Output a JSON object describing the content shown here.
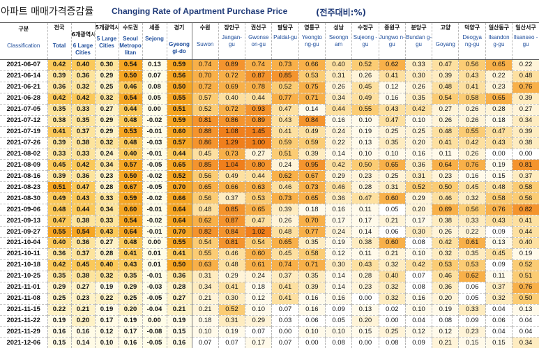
{
  "title": {
    "korean": "아파트 매매가격증감률",
    "english": "Changing Rate of Apartment Purchase Price",
    "unit": "(전주대비:%)"
  },
  "header": {
    "date_col": {
      "ko": "구분",
      "en": "Classification"
    },
    "columns": [
      {
        "ko": "전국",
        "en": "Total"
      },
      {
        "ko": "6개광역시",
        "en": "6 Large Cities"
      },
      {
        "ko": "5개광역시",
        "en": "5 Large Cities"
      },
      {
        "ko": "수도권",
        "en": "Seoul Metropo litan"
      },
      {
        "ko": "세종",
        "en": "Sejong"
      },
      {
        "ko": "경기",
        "en": "Gyeong gi-do"
      },
      {
        "ko": "수원",
        "en": "Suwon"
      },
      {
        "ko": "장안구",
        "en": "Jangan-gu"
      },
      {
        "ko": "권선구",
        "en": "Gwonse on-gu"
      },
      {
        "ko": "팔달구",
        "en": "Paldal-gu"
      },
      {
        "ko": "영통구",
        "en": "Yeongto ng-gu"
      },
      {
        "ko": "성남",
        "en": "Seongn am"
      },
      {
        "ko": "수정구",
        "en": "Sujeong -gu"
      },
      {
        "ko": "중원구",
        "en": "Jungwo n-gu"
      },
      {
        "ko": "분당구",
        "en": "Bundan g-gu"
      },
      {
        "ko": "고양",
        "en": "Goyang"
      },
      {
        "ko": "덕양구",
        "en": "Deogya ng-gu"
      },
      {
        "ko": "일산동구",
        "en": "Ilsandon g-gu"
      },
      {
        "ko": "일산서구",
        "en": "Ilsanseo -gu"
      }
    ]
  },
  "chart_data": {
    "type": "table",
    "title": "Changing Rate of Apartment Purchase Price",
    "unit": "(전주대비:%)",
    "columns": [
      "Total",
      "6 Large Cities",
      "5 Large Cities",
      "Seoul Metropo litan",
      "Sejong",
      "Gyeong gi-do",
      "Suwon",
      "Jangan-gu",
      "Gwonse on-gu",
      "Paldal-gu",
      "Yeongto ng-gu",
      "Seongn am",
      "Sujeong -gu",
      "Jungwo n-gu",
      "Bundan g-gu",
      "Goyang",
      "Deogya ng-gu",
      "Ilsandon g-gu",
      "Ilsanseo -gu"
    ],
    "rows": [
      {
        "date": "2021-06-07",
        "values": [
          "0.42",
          "0.40",
          "0.30",
          "0.54",
          "0.13",
          "0.59",
          "0.74",
          "0.89",
          "0.74",
          "0.73",
          "0.66",
          "0.40",
          "0.52",
          "0.62",
          "0.33",
          "0.47",
          "0.56",
          "0.65",
          "0.22"
        ]
      },
      {
        "date": "2021-06-14",
        "values": [
          "0.39",
          "0.36",
          "0.29",
          "0.50",
          "0.07",
          "0.56",
          "0.70",
          "0.72",
          "0.87",
          "0.85",
          "0.53",
          "0.31",
          "0.26",
          "0.41",
          "0.30",
          "0.39",
          "0.43",
          "0.22",
          "0.48"
        ]
      },
      {
        "date": "2021-06-21",
        "values": [
          "0.36",
          "0.32",
          "0.25",
          "0.46",
          "0.08",
          "0.50",
          "0.72",
          "0.69",
          "0.78",
          "0.52",
          "0.75",
          "0.26",
          "0.45",
          "0.12",
          "0.26",
          "0.48",
          "0.41",
          "0.23",
          "0.76"
        ]
      },
      {
        "date": "2021-06-28",
        "values": [
          "0.42",
          "0.42",
          "0.32",
          "0.54",
          "0.05",
          "0.55",
          "0.57",
          "0.40",
          "0.44",
          "0.77",
          "0.71",
          "0.34",
          "0.49",
          "0.16",
          "0.35",
          "0.54",
          "0.58",
          "0.65",
          "0.39"
        ]
      },
      {
        "date": "2021-07-05",
        "values": [
          "0.35",
          "0.33",
          "0.27",
          "0.44",
          "0.00",
          "0.51",
          "0.52",
          "0.72",
          "0.93",
          "0.47",
          "0.14",
          "0.44",
          "0.55",
          "0.43",
          "0.42",
          "0.27",
          "0.26",
          "0.28",
          "0.27"
        ]
      },
      {
        "date": "2021-07-12",
        "values": [
          "0.38",
          "0.35",
          "0.29",
          "0.48",
          "-0.02",
          "0.59",
          "0.81",
          "0.86",
          "0.89",
          "0.43",
          "0.84",
          "0.16",
          "0.10",
          "0.47",
          "0.10",
          "0.26",
          "0.26",
          "0.18",
          "0.34"
        ]
      },
      {
        "date": "2021-07-19",
        "values": [
          "0.41",
          "0.37",
          "0.29",
          "0.53",
          "-0.01",
          "0.60",
          "0.88",
          "1.08",
          "1.45",
          "0.41",
          "0.49",
          "0.24",
          "0.19",
          "0.25",
          "0.25",
          "0.48",
          "0.55",
          "0.47",
          "0.39"
        ]
      },
      {
        "date": "2021-07-26",
        "values": [
          "0.39",
          "0.38",
          "0.32",
          "0.48",
          "-0.03",
          "0.57",
          "0.86",
          "1.29",
          "1.00",
          "0.59",
          "0.59",
          "0.22",
          "0.13",
          "0.35",
          "0.20",
          "0.41",
          "0.42",
          "0.43",
          "0.38"
        ]
      },
      {
        "date": "2021-08-02",
        "values": [
          "0.33",
          "0.33",
          "0.24",
          "0.40",
          "-0.01",
          "0.44",
          "0.45",
          "0.73",
          "0.27",
          "0.51",
          "0.39",
          "0.14",
          "0.10",
          "0.10",
          "0.16",
          "0.11",
          "0.26",
          "0.00",
          "0.00"
        ]
      },
      {
        "date": "2021-08-09",
        "values": [
          "0.45",
          "0.42",
          "0.34",
          "0.57",
          "-0.05",
          "0.65",
          "0.85",
          "1.04",
          "0.80",
          "0.24",
          "0.95",
          "0.42",
          "0.50",
          "0.65",
          "0.36",
          "0.64",
          "0.76",
          "0.19",
          "0.81"
        ]
      },
      {
        "date": "2021-08-16",
        "values": [
          "0.39",
          "0.36",
          "0.23",
          "0.50",
          "-0.02",
          "0.52",
          "0.56",
          "0.49",
          "0.44",
          "0.62",
          "0.67",
          "0.29",
          "0.23",
          "0.25",
          "0.31",
          "0.23",
          "0.16",
          "0.15",
          "0.37"
        ]
      },
      {
        "date": "2021-08-23",
        "values": [
          "0.51",
          "0.47",
          "0.28",
          "0.67",
          "-0.05",
          "0.70",
          "0.65",
          "0.66",
          "0.63",
          "0.46",
          "0.73",
          "0.46",
          "0.28",
          "0.31",
          "0.52",
          "0.50",
          "0.45",
          "0.48",
          "0.58"
        ]
      },
      {
        "date": "2021-08-30",
        "values": [
          "0.49",
          "0.43",
          "0.33",
          "0.59",
          "-0.02",
          "0.66",
          "0.56",
          "0.37",
          "0.53",
          "0.73",
          "0.65",
          "0.36",
          "0.47",
          "0.60",
          "0.29",
          "0.46",
          "0.32",
          "0.58",
          "0.56"
        ]
      },
      {
        "date": "2021-09-06",
        "values": [
          "0.48",
          "0.44",
          "0.34",
          "0.60",
          "-0.01",
          "0.64",
          "0.48",
          "0.85",
          "0.65",
          "0.39",
          "0.18",
          "0.16",
          "0.11",
          "0.05",
          "0.20",
          "0.69",
          "0.56",
          "0.76",
          "0.82"
        ]
      },
      {
        "date": "2021-09-13",
        "values": [
          "0.47",
          "0.38",
          "0.33",
          "0.54",
          "-0.02",
          "0.64",
          "0.62",
          "0.87",
          "0.47",
          "0.26",
          "0.70",
          "0.17",
          "0.17",
          "0.21",
          "0.17",
          "0.38",
          "0.33",
          "0.43",
          "0.41"
        ]
      },
      {
        "date": "2021-09-27",
        "values": [
          "0.55",
          "0.54",
          "0.43",
          "0.64",
          "-0.01",
          "0.70",
          "0.82",
          "0.84",
          "1.02",
          "0.48",
          "0.77",
          "0.24",
          "0.14",
          "0.06",
          "0.30",
          "0.26",
          "0.22",
          "0.09",
          "0.44"
        ]
      },
      {
        "date": "2021-10-04",
        "values": [
          "0.40",
          "0.36",
          "0.27",
          "0.48",
          "0.00",
          "0.55",
          "0.54",
          "0.81",
          "0.54",
          "0.65",
          "0.35",
          "0.19",
          "0.38",
          "0.60",
          "0.08",
          "0.42",
          "0.61",
          "0.13",
          "0.40"
        ]
      },
      {
        "date": "2021-10-11",
        "values": [
          "0.36",
          "0.37",
          "0.28",
          "0.41",
          "0.01",
          "0.41",
          "0.55",
          "0.46",
          "0.60",
          "0.45",
          "0.58",
          "0.12",
          "0.11",
          "0.21",
          "0.10",
          "0.32",
          "0.35",
          "0.45",
          "0.19"
        ]
      },
      {
        "date": "2021-10-18",
        "values": [
          "0.42",
          "0.45",
          "0.40",
          "0.43",
          "0.01",
          "0.50",
          "0.63",
          "0.48",
          "0.61",
          "0.74",
          "0.71",
          "0.30",
          "0.43",
          "0.32",
          "0.42",
          "0.53",
          "0.53",
          "0.09",
          "0.52"
        ]
      },
      {
        "date": "2021-10-25",
        "values": [
          "0.35",
          "0.38",
          "0.32",
          "0.35",
          "-0.01",
          "0.36",
          "0.31",
          "0.29",
          "0.24",
          "0.37",
          "0.35",
          "0.14",
          "0.28",
          "0.40",
          "0.07",
          "0.46",
          "0.62",
          "0.11",
          "0.51"
        ]
      },
      {
        "date": "2021-11-01",
        "values": [
          "0.29",
          "0.27",
          "0.19",
          "0.29",
          "-0.03",
          "0.28",
          "0.34",
          "0.41",
          "0.18",
          "0.41",
          "0.39",
          "0.14",
          "0.23",
          "0.32",
          "0.08",
          "0.36",
          "0.06",
          "0.37",
          "0.76"
        ]
      },
      {
        "date": "2021-11-08",
        "values": [
          "0.25",
          "0.23",
          "0.22",
          "0.25",
          "-0.05",
          "0.27",
          "0.21",
          "0.30",
          "0.12",
          "0.41",
          "0.16",
          "0.16",
          "0.00",
          "0.32",
          "0.16",
          "0.20",
          "0.05",
          "0.32",
          "0.50"
        ]
      },
      {
        "date": "2021-11-15",
        "values": [
          "0.22",
          "0.21",
          "0.19",
          "0.20",
          "-0.04",
          "0.21",
          "0.21",
          "0.52",
          "0.10",
          "0.07",
          "0.16",
          "0.09",
          "0.13",
          "0.02",
          "0.10",
          "0.19",
          "0.33",
          "0.04",
          "0.13"
        ]
      },
      {
        "date": "2021-11-22",
        "values": [
          "0.19",
          "0.20",
          "0.17",
          "0.19",
          "0.00",
          "0.19",
          "0.18",
          "0.31",
          "0.29",
          "0.03",
          "0.06",
          "0.05",
          "0.20",
          "0.00",
          "0.04",
          "0.08",
          "0.09",
          "0.06",
          "0.04"
        ]
      },
      {
        "date": "2021-11-29",
        "values": [
          "0.16",
          "0.16",
          "0.12",
          "0.17",
          "-0.08",
          "0.15",
          "0.10",
          "0.19",
          "0.07",
          "0.00",
          "0.10",
          "0.10",
          "0.15",
          "0.25",
          "0.12",
          "0.12",
          "0.23",
          "0.04",
          "0.04"
        ]
      },
      {
        "date": "2021-12-06",
        "values": [
          "0.15",
          "0.14",
          "0.10",
          "0.16",
          "-0.05",
          "0.16",
          "0.07",
          "0.07",
          "0.17",
          "0.07",
          "0.00",
          "0.08",
          "0.00",
          "0.08",
          "0.09",
          "0.21",
          "0.15",
          "0.15",
          "0.34"
        ]
      }
    ]
  }
}
